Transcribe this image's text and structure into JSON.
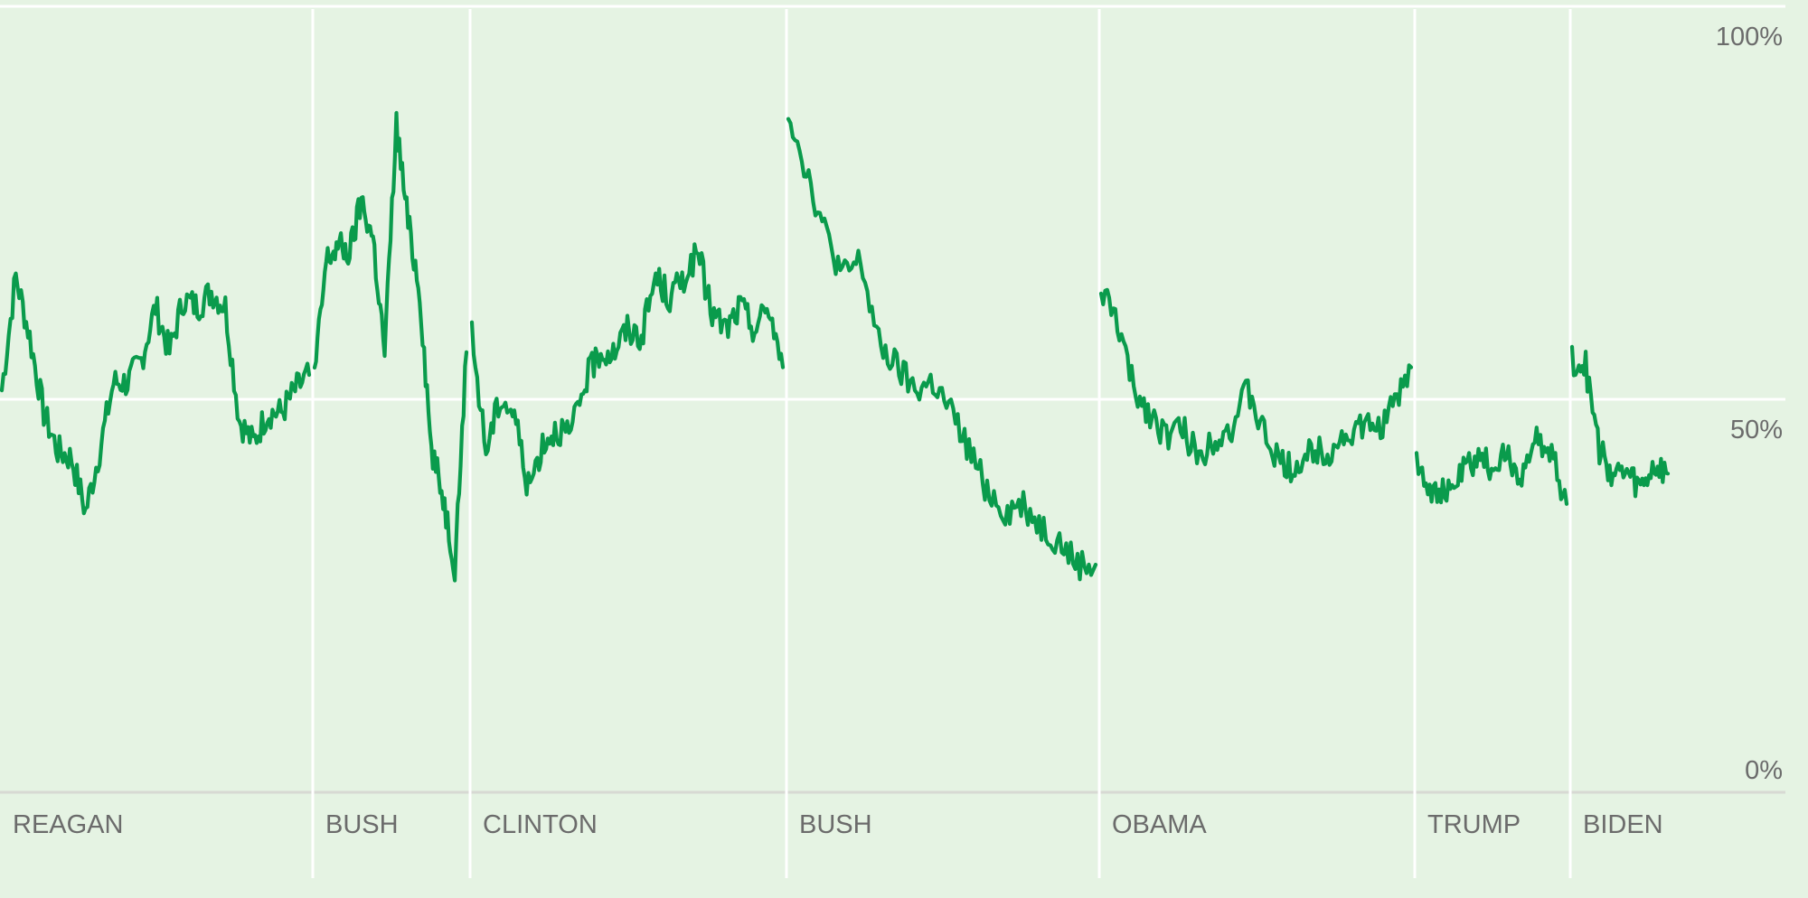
{
  "chart_data": {
    "type": "line",
    "title": "",
    "xlabel": "",
    "ylabel": "",
    "ylim": [
      0,
      100
    ],
    "y_ticks": [
      {
        "value": 100,
        "label": "100%"
      },
      {
        "value": 50,
        "label": "50%"
      },
      {
        "value": 0,
        "label": "0%"
      }
    ],
    "grid": true,
    "colors": {
      "background": "#e5f3e3",
      "line": "#0a9b4c",
      "gridline": "#ffffff",
      "baseline": "#d7d9d3",
      "text": "#6b6b6b"
    },
    "terms": [
      {
        "label": "REAGAN",
        "start": 0,
        "end": 0.9,
        "values": [
          53,
          68,
          60,
          50,
          45,
          44,
          37,
          45,
          54,
          54,
          57,
          64,
          58,
          65,
          64,
          66,
          64,
          49,
          46,
          50,
          50,
          53,
          55
        ]
      },
      {
        "label": "BUSH",
        "start": 0.9,
        "end": 1.35,
        "values": [
          55,
          70,
          72,
          71,
          78,
          73,
          58,
          88,
          75,
          66,
          45,
          39,
          30,
          58
        ]
      },
      {
        "label": "CLINTON",
        "start": 1.35,
        "end": 2.26,
        "values": [
          60,
          45,
          52,
          50,
          40,
          46,
          48,
          47,
          54,
          58,
          58,
          61,
          60,
          68,
          65,
          68,
          71,
          63,
          61,
          64,
          61,
          64,
          56
        ]
      },
      {
        "label": "BUSH",
        "start": 2.26,
        "end": 3.15,
        "values": [
          90,
          82,
          74,
          68,
          70,
          59,
          56,
          53,
          54,
          50,
          45,
          40,
          37,
          38,
          35,
          33,
          30,
          30
        ]
      },
      {
        "label": "OBAMA",
        "start": 3.15,
        "end": 4.06,
        "values": [
          66,
          62,
          53,
          50,
          47,
          48,
          44,
          47,
          48,
          53,
          47,
          43,
          43,
          45,
          45,
          47,
          48,
          48,
          51,
          56
        ]
      },
      {
        "label": "TRUMP",
        "start": 4.06,
        "end": 4.51,
        "values": [
          44,
          40,
          39,
          42,
          44,
          43,
          44,
          42,
          46,
          45,
          38
        ]
      },
      {
        "label": "BIDEN",
        "start": 4.51,
        "end": 4.8,
        "values": [
          57,
          56,
          45,
          42,
          42,
          40,
          43,
          42
        ]
      }
    ]
  }
}
